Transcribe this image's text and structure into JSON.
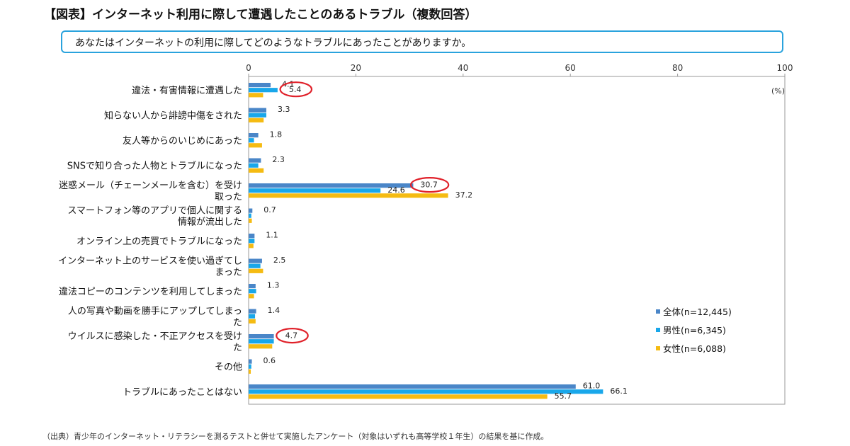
{
  "title": "【図表】インターネット利用に際して遭遇したことのあるトラブル（複数回答）",
  "question": "あなたはインターネットの利用に際してどのようなトラブルにあったことがありますか。",
  "source": "（出典）青少年のインターネット・リテラシーを測るテストと併せて実施したアンケート（対象はいずれも高等学校１年生）の結果を基に作成。",
  "colors": {
    "all": "#4a86c8",
    "male": "#19a7ea",
    "female": "#f5bb12",
    "highlight": "#e0212a",
    "axis": "#999999"
  },
  "chart_data": {
    "type": "bar",
    "orientation": "horizontal",
    "unit_label": "(%)",
    "xlim": [
      0,
      100
    ],
    "xticks": [
      0,
      20,
      40,
      60,
      80,
      100
    ],
    "legend_position": "right",
    "categories": [
      [
        "違法・有害情報に遭遇した"
      ],
      [
        "知らない人から誹謗中傷をされた"
      ],
      [
        "友人等からのいじめにあった"
      ],
      [
        "SNSで知り合った人物とトラブルになった"
      ],
      [
        "迷惑メール（チェーンメールを含む）を受け",
        "取った"
      ],
      [
        "スマートフォン等のアプリで個人に関する",
        "情報が流出した"
      ],
      [
        "オンライン上の売買でトラブルになった"
      ],
      [
        "インターネット上のサービスを使い過ぎてし",
        "まった"
      ],
      [
        "違法コピーのコンテンツを利用してしまった"
      ],
      [
        "人の写真や動画を勝手にアップしてしまっ",
        "た"
      ],
      [
        "ウイルスに感染した・不正アクセスを受け",
        "た"
      ],
      [
        "その他"
      ],
      [
        "トラブルにあったことはない"
      ]
    ],
    "series": [
      {
        "name": "全体(n=12,445)",
        "key": "all",
        "values": [
          4.1,
          3.3,
          1.8,
          2.3,
          30.7,
          0.7,
          1.1,
          2.5,
          1.3,
          1.4,
          4.7,
          0.6,
          61.0
        ],
        "labels": [
          "4.1",
          "3.3",
          "1.8",
          "2.3",
          "30.7",
          "0.7",
          "1.1",
          "2.5",
          "1.3",
          "1.4",
          "4.7",
          "0.6",
          "61.0"
        ]
      },
      {
        "name": "男性(n=6,345)",
        "key": "male",
        "values": [
          5.4,
          3.3,
          1.0,
          1.8,
          24.6,
          0.5,
          1.1,
          2.2,
          1.4,
          1.2,
          4.7,
          0.5,
          66.1
        ],
        "labels": [
          "5.4",
          "",
          "",
          "",
          "24.6",
          "",
          "",
          "",
          "",
          "",
          "",
          "",
          "66.1"
        ]
      },
      {
        "name": "女性(n=6,088)",
        "key": "female",
        "values": [
          2.7,
          2.8,
          2.5,
          2.8,
          37.2,
          0.6,
          0.9,
          2.7,
          1.0,
          1.3,
          4.4,
          0.4,
          55.7
        ],
        "labels": [
          "",
          "",
          "",
          "",
          "37.2",
          "",
          "",
          "",
          "",
          "",
          "",
          "",
          "55.7"
        ]
      }
    ],
    "highlighted_labels": [
      "5.4",
      "30.7",
      "4.7"
    ]
  }
}
